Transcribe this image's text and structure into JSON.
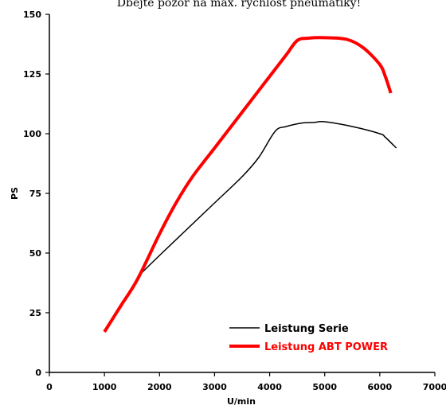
{
  "header_text": "Dbejte pozor na max. rychlost pneumatiky!",
  "chart_data": {
    "type": "line",
    "title": "",
    "xlabel": "U/min",
    "ylabel": "PS",
    "xlim": [
      0,
      7000
    ],
    "ylim": [
      0,
      150
    ],
    "x_ticks": [
      0,
      1000,
      2000,
      3000,
      4000,
      5000,
      6000,
      7000
    ],
    "y_ticks": [
      0,
      25,
      50,
      75,
      100,
      125,
      150
    ],
    "grid": false,
    "legend_position": "bottom-right",
    "series": [
      {
        "name": "Leistung Serie",
        "color": "#000000",
        "points": [
          [
            1600,
            40
          ],
          [
            2000,
            49
          ],
          [
            2500,
            60
          ],
          [
            3000,
            71
          ],
          [
            3500,
            82
          ],
          [
            3800,
            90
          ],
          [
            4100,
            101
          ],
          [
            4300,
            103
          ],
          [
            4600,
            104.5
          ],
          [
            4800,
            104.7
          ],
          [
            5000,
            105
          ],
          [
            5500,
            103
          ],
          [
            6000,
            100
          ],
          [
            6100,
            98.5
          ],
          [
            6300,
            94
          ]
        ]
      },
      {
        "name": "Leistung ABT POWER",
        "color": "#ff0000",
        "points": [
          [
            1000,
            17
          ],
          [
            1300,
            28
          ],
          [
            1600,
            39
          ],
          [
            2000,
            58
          ],
          [
            2300,
            71
          ],
          [
            2600,
            82
          ],
          [
            3000,
            94
          ],
          [
            3500,
            109
          ],
          [
            4000,
            124
          ],
          [
            4300,
            133
          ],
          [
            4500,
            139
          ],
          [
            4700,
            140
          ],
          [
            5000,
            140.2
          ],
          [
            5400,
            139.5
          ],
          [
            5700,
            136
          ],
          [
            6000,
            129
          ],
          [
            6100,
            124
          ],
          [
            6200,
            117
          ]
        ]
      }
    ]
  }
}
